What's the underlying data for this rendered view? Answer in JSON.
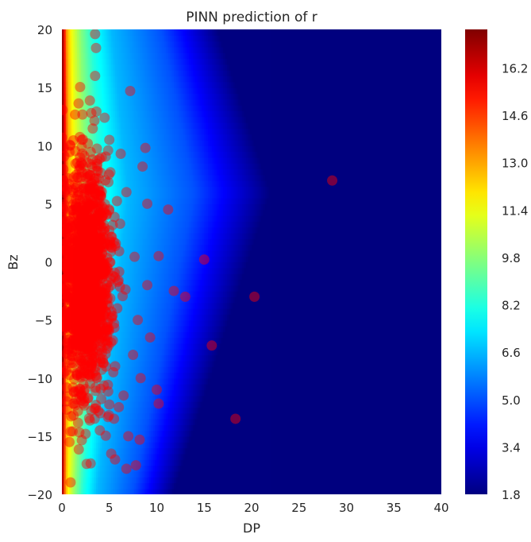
{
  "chart_data": {
    "type": "heatmap",
    "title": "PINN prediction of r",
    "xlabel": "DP",
    "ylabel": "Bz",
    "xlim": [
      0,
      40
    ],
    "ylim": [
      -20,
      20
    ],
    "grid": false,
    "x_ticks": [
      0,
      5,
      10,
      15,
      20,
      25,
      30,
      35,
      40
    ],
    "y_ticks": [
      -20,
      -15,
      -10,
      -5,
      0,
      5,
      10,
      15,
      20
    ],
    "x_tick_labels": [
      "0",
      "5",
      "10",
      "15",
      "20",
      "25",
      "30",
      "35",
      "40"
    ],
    "y_tick_labels": [
      "−20",
      "−15",
      "−10",
      "−5",
      "0",
      "5",
      "10",
      "15",
      "20"
    ],
    "colormap": "jet",
    "colorbar": {
      "range": [
        1.8,
        17.5
      ],
      "ticks": [
        1.8,
        3.4,
        5.0,
        6.6,
        8.2,
        9.8,
        11.4,
        13.0,
        14.6,
        16.2
      ],
      "tick_labels": [
        "1.8",
        "3.4",
        "5.0",
        "6.6",
        "8.2",
        "9.8",
        "11.4",
        "13.0",
        "14.6",
        "16.2"
      ]
    },
    "field_model": {
      "description_values": "r decreases with DP; contours bend outward with Bz, peak DP extent near Bz=6",
      "level_boundary_dp_at_peak": {
        "r_5.0": 14.0,
        "r_6.6": 7.0,
        "r_8.2": 4.2,
        "r_9.8": 2.6,
        "r_11.4": 1.4,
        "r_13.0": 0.7
      }
    },
    "scatter": {
      "color": "#ff0000",
      "marker": "circle",
      "alpha": 0.45,
      "dense_core": {
        "dp_center": 2.6,
        "bz_center": -1.5,
        "dp_spread": 1.3,
        "bz_spread": 5.0
      },
      "outliers": [
        {
          "x": 28.5,
          "y": 7.0
        },
        {
          "x": 20.3,
          "y": -3.0
        },
        {
          "x": 18.3,
          "y": -13.5
        },
        {
          "x": 15.8,
          "y": -7.2
        },
        {
          "x": 15.0,
          "y": 0.2
        },
        {
          "x": 10.2,
          "y": -12.2
        },
        {
          "x": 10.0,
          "y": -11.0
        },
        {
          "x": 7.8,
          "y": -17.5
        },
        {
          "x": 8.2,
          "y": -15.3
        },
        {
          "x": 7.0,
          "y": -15.0
        },
        {
          "x": 5.6,
          "y": -17.0
        },
        {
          "x": 6.8,
          "y": -17.8
        },
        {
          "x": 5.2,
          "y": -16.5
        },
        {
          "x": 3.5,
          "y": 19.6
        },
        {
          "x": 3.6,
          "y": 18.4
        },
        {
          "x": 3.5,
          "y": 16.0
        },
        {
          "x": 3.1,
          "y": 12.8
        },
        {
          "x": 7.2,
          "y": 14.7
        },
        {
          "x": 4.5,
          "y": 12.4
        },
        {
          "x": 6.2,
          "y": 9.3
        },
        {
          "x": 8.8,
          "y": 9.8
        },
        {
          "x": 8.5,
          "y": 8.2
        },
        {
          "x": 11.2,
          "y": 4.5
        },
        {
          "x": 11.8,
          "y": -2.5
        },
        {
          "x": 13.0,
          "y": -3.0
        },
        {
          "x": 9.3,
          "y": -6.5
        },
        {
          "x": 8.3,
          "y": -10.0
        },
        {
          "x": 6.5,
          "y": -11.5
        },
        {
          "x": 6.0,
          "y": -12.5
        },
        {
          "x": 0.8,
          "y": -15.5
        },
        {
          "x": 0.5,
          "y": -12.0
        },
        {
          "x": 1.2,
          "y": -12.2
        },
        {
          "x": 2.1,
          "y": 10.5
        },
        {
          "x": 4.2,
          "y": 9.0
        },
        {
          "x": 5.0,
          "y": 10.5
        },
        {
          "x": 6.8,
          "y": 6.0
        },
        {
          "x": 9.0,
          "y": 5.0
        },
        {
          "x": 10.2,
          "y": 0.5
        },
        {
          "x": 9.0,
          "y": -2.0
        },
        {
          "x": 8.0,
          "y": -5.0
        },
        {
          "x": 7.5,
          "y": -8.0
        },
        {
          "x": 5.5,
          "y": -13.5
        },
        {
          "x": 4.0,
          "y": -14.5
        },
        {
          "x": 2.5,
          "y": -14.8
        }
      ]
    }
  }
}
